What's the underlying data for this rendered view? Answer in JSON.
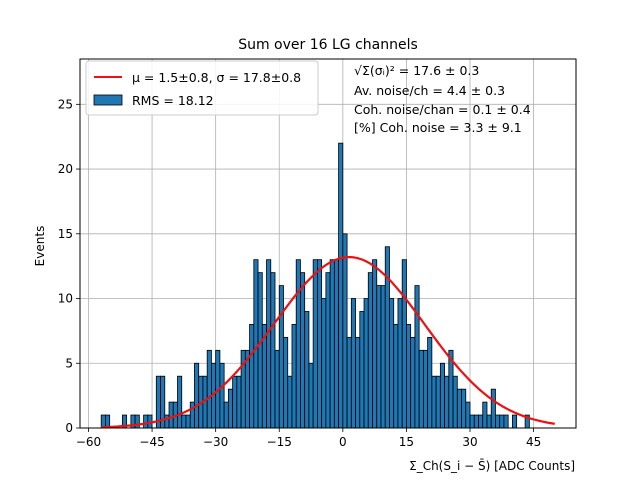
{
  "chart_data": {
    "type": "bar",
    "title": "Sum over 16 LG channels",
    "xlabel": "Σ_Ch(S_i − S̄) [ADC Counts]",
    "ylabel": "Events",
    "xlim": [
      -62,
      55
    ],
    "ylim": [
      0,
      28.5
    ],
    "xticks": [
      -60,
      -45,
      -30,
      -15,
      0,
      15,
      30,
      45
    ],
    "yticks": [
      0,
      5,
      10,
      15,
      20,
      25
    ],
    "grid": true,
    "bin_width": 1,
    "hist_x_start": -57,
    "hist_counts": [
      1,
      1,
      0,
      0,
      0,
      1,
      0,
      1,
      1,
      0,
      1,
      1,
      0,
      4,
      4,
      1,
      2,
      2,
      4,
      1,
      1,
      2,
      5,
      4,
      4,
      6,
      5,
      6,
      5,
      2,
      3,
      4,
      4,
      6,
      6,
      8,
      13,
      12,
      8,
      13,
      12,
      6,
      11,
      7,
      4,
      8,
      13,
      12,
      9,
      5,
      13,
      13,
      10,
      12,
      13,
      13,
      22,
      15,
      7,
      10,
      7,
      9,
      10,
      12,
      13,
      11,
      11,
      14,
      10,
      8,
      10,
      13,
      8,
      7,
      11,
      6,
      6,
      7,
      4,
      4,
      5,
      4,
      6,
      4,
      3,
      3,
      2,
      1,
      1,
      1,
      2,
      1,
      3,
      1,
      1,
      1,
      0,
      1,
      0,
      0,
      1,
      0
    ],
    "fit": {
      "type": "gaussian",
      "mu": 1.5,
      "sigma": 17.8,
      "amplitude": 13.2,
      "x_range": [
        -57,
        50
      ],
      "color": "#ee1111"
    },
    "bar_color": "#1f77b4",
    "legend_position": "upper-left",
    "legend": [
      {
        "label": "μ = 1.5±0.8, σ = 17.8±0.8",
        "kind": "line",
        "color": "#ee1111"
      },
      {
        "label": "RMS = 18.12",
        "kind": "patch",
        "color": "#1f77b4"
      }
    ],
    "annotations": [
      "√Σ(σᵢ)² = 17.6 ± 0.3",
      "Av. noise/ch = 4.4 ± 0.3",
      "Coh. noise/chan = 0.1 ± 0.4",
      "[%] Coh. noise = 3.3 ± 9.1"
    ]
  }
}
